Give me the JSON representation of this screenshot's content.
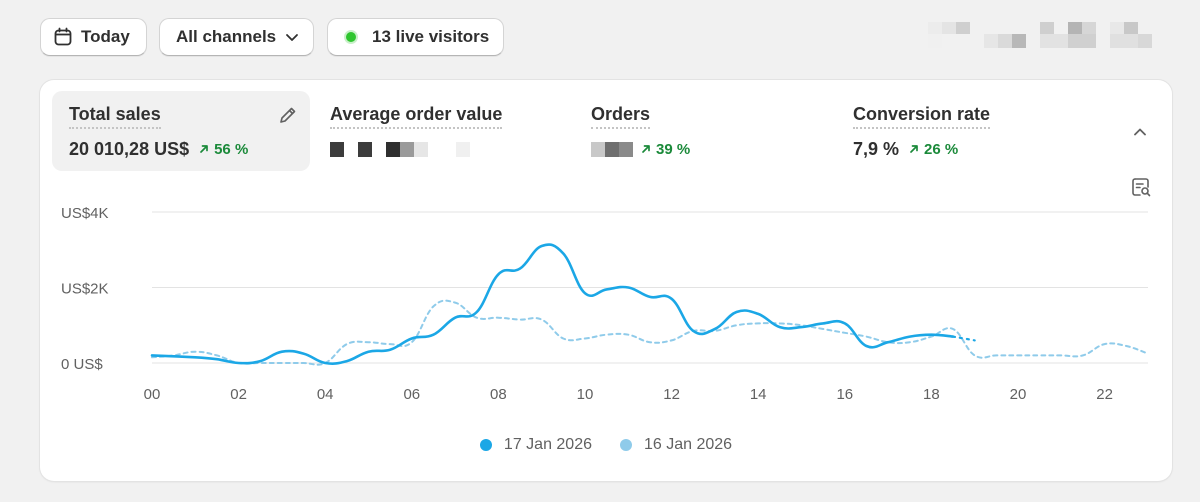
{
  "toolbar": {
    "date_label": "Today",
    "channels_label": "All channels",
    "live_label": "13 live visitors"
  },
  "colors": {
    "accent": "#1ba7e6",
    "comparison": "#8fcbea",
    "positive": "#1b8a3a",
    "live": "#2ec52e"
  },
  "metrics": [
    {
      "label": "Total sales",
      "value": "20 010,28 US$",
      "change": "56 %",
      "active": true
    },
    {
      "label": "Average order value",
      "value": "",
      "change": ""
    },
    {
      "label": "Orders",
      "value": "",
      "change": "39 %"
    },
    {
      "label": "Conversion rate",
      "value": "7,9 %",
      "change": "26 %"
    }
  ],
  "chart_data": {
    "type": "line",
    "y_ticks": [
      "US$4K",
      "US$2K",
      "0 US$"
    ],
    "y_tick_values": [
      4000,
      2000,
      0
    ],
    "ylim": [
      0,
      4000
    ],
    "x_ticks": [
      "00",
      "02",
      "04",
      "06",
      "08",
      "10",
      "12",
      "14",
      "16",
      "18",
      "20",
      "22"
    ],
    "x_tick_values": [
      0,
      2,
      4,
      6,
      8,
      10,
      12,
      14,
      16,
      18,
      20,
      22
    ],
    "xlim": [
      0,
      23
    ],
    "grid": true,
    "legend_position": "bottom",
    "series": [
      {
        "name": "17 Jan 2026",
        "style": "solid",
        "x": [
          0,
          1,
          1.5,
          2,
          2.5,
          3,
          3.5,
          4,
          4.5,
          5,
          5.5,
          6,
          6.5,
          7,
          7.5,
          8,
          8.5,
          9,
          9.5,
          10,
          10.5,
          11,
          11.5,
          12,
          12.5,
          13,
          13.5,
          14,
          14.5,
          15,
          15.5,
          16,
          16.5,
          17,
          17.5,
          18,
          18.5
        ],
        "y": [
          200,
          150,
          100,
          0,
          50,
          300,
          250,
          0,
          50,
          300,
          350,
          650,
          750,
          1200,
          1350,
          2350,
          2500,
          3100,
          2900,
          1850,
          1950,
          2000,
          1750,
          1700,
          850,
          900,
          1350,
          1300,
          950,
          950,
          1050,
          1050,
          450,
          550,
          700,
          750,
          700
        ],
        "projected": {
          "x": [
            18.5,
            19
          ],
          "y": [
            700,
            600
          ]
        }
      },
      {
        "name": "16 Jan 2026",
        "style": "dashed",
        "x": [
          0,
          0.5,
          1,
          1.5,
          2,
          2.5,
          3,
          3.5,
          4,
          4.5,
          5,
          5.5,
          6,
          6.5,
          7,
          7.5,
          8,
          8.5,
          9,
          9.5,
          10,
          10.5,
          11,
          11.5,
          12,
          12.5,
          13,
          13.5,
          14,
          14.5,
          15,
          15.5,
          16,
          16.5,
          17,
          17.5,
          18,
          18.5,
          19,
          19.5,
          20,
          20.5,
          21,
          21.5,
          22,
          22.5,
          23
        ],
        "y": [
          150,
          200,
          300,
          200,
          0,
          0,
          0,
          0,
          0,
          500,
          550,
          500,
          550,
          1500,
          1600,
          1200,
          1200,
          1150,
          1150,
          650,
          650,
          750,
          750,
          550,
          600,
          850,
          850,
          1000,
          1050,
          1050,
          1000,
          900,
          800,
          700,
          550,
          550,
          700,
          900,
          200,
          200,
          200,
          200,
          200,
          200,
          500,
          450,
          250
        ]
      }
    ]
  }
}
